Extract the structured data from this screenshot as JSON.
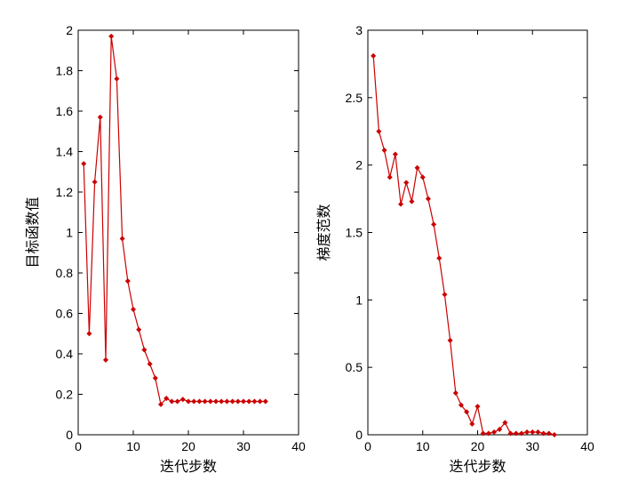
{
  "figure": {
    "background": "#ffffff",
    "line_color": "#cc0000"
  },
  "chart_data": [
    {
      "type": "line",
      "xlabel": "迭代步数",
      "ylabel": "目标函数值",
      "xlim": [
        0,
        40
      ],
      "ylim": [
        0,
        2
      ],
      "xticks": [
        0,
        10,
        20,
        30,
        40
      ],
      "yticks": [
        0,
        0.2,
        0.4,
        0.6,
        0.8,
        1,
        1.2,
        1.4,
        1.6,
        1.8,
        2
      ],
      "xtick_labels": [
        "0",
        "10",
        "20",
        "30",
        "40"
      ],
      "ytick_labels": [
        "0",
        "0.2",
        "0.4",
        "0.6",
        "0.8",
        "1",
        "1.2",
        "1.4",
        "1.6",
        "1.8",
        "2"
      ],
      "grid": false,
      "marker": "diamond",
      "series": [
        {
          "x": [
            1,
            2,
            3,
            4,
            5,
            6,
            7,
            8,
            9,
            10,
            11,
            12,
            13,
            14,
            15,
            16,
            17,
            18,
            19,
            20,
            21,
            22,
            23,
            24,
            25,
            26,
            27,
            28,
            29,
            30,
            31,
            32,
            33,
            34
          ],
          "y": [
            1.34,
            0.5,
            1.25,
            1.57,
            0.37,
            1.97,
            1.76,
            0.97,
            0.76,
            0.62,
            0.52,
            0.42,
            0.35,
            0.28,
            0.15,
            0.18,
            0.165,
            0.165,
            0.175,
            0.165,
            0.165,
            0.165,
            0.165,
            0.165,
            0.165,
            0.165,
            0.165,
            0.165,
            0.165,
            0.165,
            0.165,
            0.165,
            0.165,
            0.165
          ]
        }
      ]
    },
    {
      "type": "line",
      "xlabel": "迭代步数",
      "ylabel": "梯度范数",
      "xlim": [
        0,
        40
      ],
      "ylim": [
        0,
        3
      ],
      "xticks": [
        0,
        10,
        20,
        30,
        40
      ],
      "yticks": [
        0,
        0.5,
        1,
        1.5,
        2,
        2.5,
        3
      ],
      "xtick_labels": [
        "0",
        "10",
        "20",
        "30",
        "40"
      ],
      "ytick_labels": [
        "0",
        "0.5",
        "1",
        "1.5",
        "2",
        "2.5",
        "3"
      ],
      "grid": false,
      "marker": "diamond",
      "series": [
        {
          "x": [
            1,
            2,
            3,
            4,
            5,
            6,
            7,
            8,
            9,
            10,
            11,
            12,
            13,
            14,
            15,
            16,
            17,
            18,
            19,
            20,
            21,
            22,
            23,
            24,
            25,
            26,
            27,
            28,
            29,
            30,
            31,
            32,
            33,
            34
          ],
          "y": [
            2.81,
            2.25,
            2.11,
            1.91,
            2.08,
            1.71,
            1.87,
            1.73,
            1.98,
            1.91,
            1.75,
            1.56,
            1.31,
            1.04,
            0.7,
            0.31,
            0.22,
            0.17,
            0.08,
            0.21,
            0.01,
            0.01,
            0.02,
            0.04,
            0.09,
            0.01,
            0.01,
            0.01,
            0.02,
            0.02,
            0.02,
            0.01,
            0.01,
            0.0
          ]
        }
      ]
    }
  ]
}
